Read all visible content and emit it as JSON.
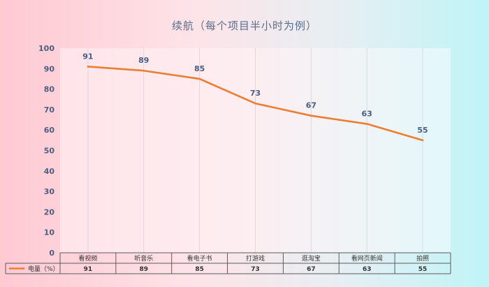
{
  "chart_data": {
    "type": "line",
    "title": "续航（每个项目半小时为例）",
    "categories": [
      "看视频",
      "听音乐",
      "看电子书",
      "打游戏",
      "逛淘宝",
      "看网页新闻",
      "拍照"
    ],
    "series": [
      {
        "name": "电量（%）",
        "values": [
          91,
          89,
          85,
          73,
          67,
          63,
          55
        ],
        "color": "#ed7d31"
      }
    ],
    "ylim": [
      0,
      100
    ],
    "yticks": [
      0,
      10,
      20,
      30,
      40,
      50,
      60,
      70,
      80,
      90,
      100
    ],
    "xlabel": "",
    "ylabel": "",
    "data_table": true
  },
  "colors": {
    "series": "#ed7d31",
    "axis_text": "#4a5e80",
    "gridline": "#d0d4e0",
    "table_border": "#5b5b5b"
  }
}
